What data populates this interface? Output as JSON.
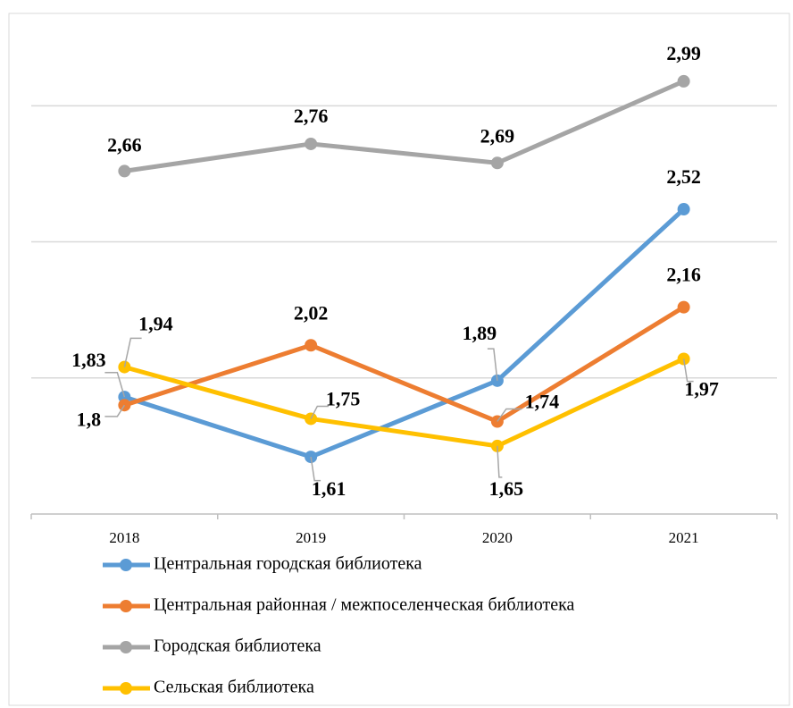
{
  "chart_data": {
    "type": "line",
    "categories": [
      "2018",
      "2019",
      "2020",
      "2021"
    ],
    "series": [
      {
        "name": "Центральная городская библиотека",
        "color": "#5b9bd5",
        "values": [
          1.83,
          1.61,
          1.89,
          2.52
        ],
        "value_labels": [
          "1,83",
          "1,61",
          "1,89",
          "2,52"
        ]
      },
      {
        "name": "Центральная районная / межпоселенческая библиотека",
        "color": "#ed7d31",
        "values": [
          1.8,
          2.02,
          1.74,
          2.16
        ],
        "value_labels": [
          "1,8",
          "2,02",
          "1,74",
          "2,16"
        ]
      },
      {
        "name": "Городская библиотека",
        "color": "#a5a5a5",
        "values": [
          2.66,
          2.76,
          2.69,
          2.99
        ],
        "value_labels": [
          "2,66",
          "2,76",
          "2,69",
          "2,99"
        ]
      },
      {
        "name": "Сельская библиотека",
        "color": "#ffc000",
        "values": [
          1.94,
          1.75,
          1.65,
          1.97
        ],
        "value_labels": [
          "1,94",
          "1,75",
          "1,65",
          "1,97"
        ]
      }
    ],
    "ylim": [
      1.4,
      3.2
    ],
    "yticks": [
      1.4,
      1.9,
      2.4,
      2.9
    ],
    "grid": true,
    "legend": "bottom"
  }
}
